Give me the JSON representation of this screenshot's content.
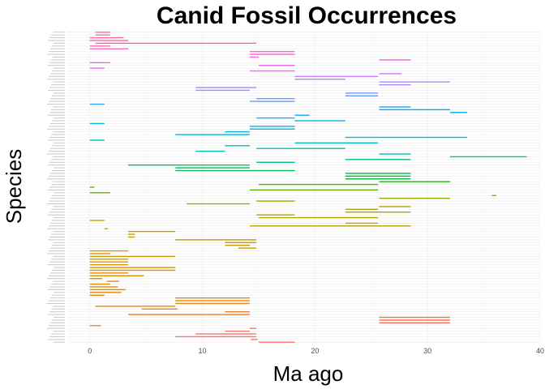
{
  "chart_data": {
    "type": "range-bar",
    "title": "Canid Fossil Occurrences",
    "xlabel": "Ma ago",
    "ylabel": "Species",
    "xlim": [
      -2,
      40
    ],
    "xticks": [
      0,
      10,
      20,
      30,
      40
    ],
    "grid": true,
    "legend": "none",
    "y_tick_labels_legible": false,
    "colors": [
      "#f8766d",
      "#e58700",
      "#c99800",
      "#a3a500",
      "#6bb100",
      "#00ba38",
      "#00bf7d",
      "#00c0af",
      "#00bcd8",
      "#00b0f6",
      "#619cff",
      "#b983ff",
      "#e76bf3",
      "#fd61d1",
      "#ff67a4"
    ],
    "species": [
      {
        "start": 15,
        "end": 18.2,
        "color": "#f8766d"
      },
      {
        "start": 14.3,
        "end": 14.9,
        "color": "#f8766d"
      },
      {
        "start": 7.6,
        "end": 14.8,
        "color": "#f8766d"
      },
      {
        "start": 9.4,
        "end": 14.8,
        "color": "#f8766d"
      },
      {
        "start": 12,
        "end": 14.2,
        "color": "#f8766d"
      },
      {
        "start": 14.2,
        "end": 14.8,
        "color": "#f8766d"
      },
      {
        "start": 0,
        "end": 1,
        "color": "#f8766d"
      },
      {
        "start": 25.7,
        "end": 32,
        "color": "#f36e5b"
      },
      {
        "start": 25.7,
        "end": 32,
        "color": "#f36e5b"
      },
      {
        "start": 25.7,
        "end": 32,
        "color": "#ee7340"
      },
      {
        "start": 3.4,
        "end": 14.2,
        "color": "#ea7e2c"
      },
      {
        "start": 12,
        "end": 14.2,
        "color": "#ea7e2c"
      },
      {
        "start": 4.6,
        "end": 7.8,
        "color": "#ea7e2c"
      },
      {
        "start": 0.5,
        "end": 7.6,
        "color": "#e58700"
      },
      {
        "start": 7.6,
        "end": 14.2,
        "color": "#e58700"
      },
      {
        "start": 7.6,
        "end": 14.2,
        "color": "#e58700"
      },
      {
        "start": 7.6,
        "end": 14.2,
        "color": "#e58700"
      },
      {
        "start": 0,
        "end": 1.3,
        "color": "#e58700"
      },
      {
        "start": 0,
        "end": 2.8,
        "color": "#e58700"
      },
      {
        "start": 0,
        "end": 3.2,
        "color": "#e58700"
      },
      {
        "start": 0,
        "end": 2.5,
        "color": "#e58700"
      },
      {
        "start": 0,
        "end": 1.8,
        "color": "#e58700"
      },
      {
        "start": 1.5,
        "end": 2.6,
        "color": "#e08e00"
      },
      {
        "start": 0,
        "end": 1.1,
        "color": "#e08e00"
      },
      {
        "start": 0,
        "end": 4.8,
        "color": "#e08e00"
      },
      {
        "start": 0,
        "end": 3.4,
        "color": "#e08e00"
      },
      {
        "start": 0,
        "end": 7.6,
        "color": "#e08e00"
      },
      {
        "start": 0,
        "end": 7.6,
        "color": "#db9300"
      },
      {
        "start": 0,
        "end": 3.4,
        "color": "#db9300"
      },
      {
        "start": 0,
        "end": 3.4,
        "color": "#db9300"
      },
      {
        "start": 0,
        "end": 3.4,
        "color": "#db9300"
      },
      {
        "start": 0,
        "end": 7.6,
        "color": "#d69600"
      },
      {
        "start": 0,
        "end": 1.8,
        "color": "#d69600"
      },
      {
        "start": 0,
        "end": 3.4,
        "color": "#d69600"
      },
      {
        "start": 13.2,
        "end": 14.8,
        "color": "#d19800"
      },
      {
        "start": 12,
        "end": 14.2,
        "color": "#d19800"
      },
      {
        "start": 12,
        "end": 14.8,
        "color": "#c99800"
      },
      {
        "start": 7.6,
        "end": 14.8,
        "color": "#c99800"
      },
      {
        "start": 3.4,
        "end": 4,
        "color": "#c99800"
      },
      {
        "start": 3.4,
        "end": 4,
        "color": "#c99800"
      },
      {
        "start": 3.4,
        "end": 7.6,
        "color": "#c49b00"
      },
      {
        "start": 1.3,
        "end": 1.6,
        "color": "#c49b00"
      },
      {
        "start": 14.2,
        "end": 28.5,
        "color": "#bf9d00"
      },
      {
        "start": 22.7,
        "end": 25.6,
        "color": "#bf9d00"
      },
      {
        "start": 0,
        "end": 1.3,
        "color": "#b99f00"
      },
      {
        "start": 15,
        "end": 25.6,
        "color": "#b3a100"
      },
      {
        "start": 14.8,
        "end": 18.2,
        "color": "#b3a100"
      },
      {
        "start": 22.7,
        "end": 28.5,
        "color": "#ada200"
      },
      {
        "start": 22.7,
        "end": 25.6,
        "color": "#ada200"
      },
      {
        "start": 25.7,
        "end": 28.5,
        "color": "#ada200"
      },
      {
        "start": 8.6,
        "end": 14.2,
        "color": "#a3a500"
      },
      {
        "start": 14.8,
        "end": 18.2,
        "color": "#a3a500"
      },
      {
        "start": 25.7,
        "end": 32,
        "color": "#93aa00"
      },
      {
        "start": 35.7,
        "end": 36.1,
        "color": "#82ad00"
      },
      {
        "start": 0,
        "end": 1.8,
        "color": "#6bb100"
      },
      {
        "start": 14.2,
        "end": 25.6,
        "color": "#5bb300"
      },
      {
        "start": 0,
        "end": 0.4,
        "color": "#4bb400"
      },
      {
        "start": 15,
        "end": 25.6,
        "color": "#4bb400"
      },
      {
        "start": 25.7,
        "end": 32,
        "color": "#22b618"
      },
      {
        "start": 22.7,
        "end": 28.5,
        "color": "#00b82c"
      },
      {
        "start": 22.7,
        "end": 28.5,
        "color": "#00ba38"
      },
      {
        "start": 22.7,
        "end": 28.5,
        "color": "#00bb44"
      },
      {
        "start": 7.6,
        "end": 18.2,
        "color": "#00bc52"
      },
      {
        "start": 7.6,
        "end": 14.2,
        "color": "#00bd5f"
      },
      {
        "start": 3.4,
        "end": 14.2,
        "color": "#00be67"
      },
      {
        "start": 14.8,
        "end": 18.2,
        "color": "#00bf73"
      },
      {
        "start": 22.7,
        "end": 28.5,
        "color": "#00c08b"
      },
      {
        "start": 32,
        "end": 38.8,
        "color": "#00c097"
      },
      {
        "start": 25.7,
        "end": 28.5,
        "color": "#00c0a3"
      },
      {
        "start": 9.4,
        "end": 12,
        "color": "#00c0af"
      },
      {
        "start": 14.8,
        "end": 22.7,
        "color": "#00c0b8"
      },
      {
        "start": 12,
        "end": 14.2,
        "color": "#00c0bf"
      },
      {
        "start": 18.2,
        "end": 25.6,
        "color": "#00bfc4"
      },
      {
        "start": 0,
        "end": 1.3,
        "color": "#00bfc4"
      },
      {
        "start": 22.7,
        "end": 33.5,
        "color": "#00bdd0"
      },
      {
        "start": 7.6,
        "end": 14.2,
        "color": "#00bcd8"
      },
      {
        "start": 12,
        "end": 14.2,
        "color": "#00bcd8"
      },
      {
        "start": 14.2,
        "end": 18.2,
        "color": "#00b9e0"
      },
      {
        "start": 14.2,
        "end": 18.2,
        "color": "#00b9e0"
      },
      {
        "start": 0,
        "end": 1.3,
        "color": "#00b6e8"
      },
      {
        "start": 18.2,
        "end": 22.7,
        "color": "#00b6e8"
      },
      {
        "start": 14.8,
        "end": 18.2,
        "color": "#00b2f0"
      },
      {
        "start": 18.2,
        "end": 19.5,
        "color": "#00b0f6"
      },
      {
        "start": 32,
        "end": 33.5,
        "color": "#00acfc"
      },
      {
        "start": 25.7,
        "end": 32,
        "color": "#00a8ff"
      },
      {
        "start": 25.7,
        "end": 28.5,
        "color": "#00a8ff"
      },
      {
        "start": 0,
        "end": 1.3,
        "color": "#33a0ff"
      },
      {
        "start": 14.2,
        "end": 18.2,
        "color": "#619cff"
      },
      {
        "start": 14.8,
        "end": 18.2,
        "color": "#619cff"
      },
      {
        "start": 22.7,
        "end": 25.6,
        "color": "#619cff"
      },
      {
        "start": 22.7,
        "end": 25.6,
        "color": "#7f96ff"
      },
      {
        "start": 9.4,
        "end": 14.2,
        "color": "#8f91ff"
      },
      {
        "start": 9.4,
        "end": 14.8,
        "color": "#8f91ff"
      },
      {
        "start": 25.7,
        "end": 28.5,
        "color": "#a58aff"
      },
      {
        "start": 25.7,
        "end": 32,
        "color": "#b983ff"
      },
      {
        "start": 18.2,
        "end": 22.7,
        "color": "#b983ff"
      },
      {
        "start": 18.2,
        "end": 25.6,
        "color": "#c77cff"
      },
      {
        "start": 25.7,
        "end": 27.7,
        "color": "#d179ff"
      },
      {
        "start": 14.2,
        "end": 18.2,
        "color": "#e76bf3"
      },
      {
        "start": 0,
        "end": 1.3,
        "color": "#e76bf3"
      },
      {
        "start": 15,
        "end": 18.2,
        "color": "#ec69ec"
      },
      {
        "start": 0,
        "end": 1.8,
        "color": "#ec69ec"
      },
      {
        "start": 25.7,
        "end": 28.5,
        "color": "#f564e3"
      },
      {
        "start": 14.2,
        "end": 15,
        "color": "#f862dc"
      },
      {
        "start": 14.2,
        "end": 18.2,
        "color": "#fd61d1"
      },
      {
        "start": 14.2,
        "end": 18.2,
        "color": "#fd61d1"
      },
      {
        "start": 0,
        "end": 3.4,
        "color": "#ff63c5"
      },
      {
        "start": 0,
        "end": 1.8,
        "color": "#ff66b8"
      },
      {
        "start": 0.5,
        "end": 14.8,
        "color": "#ff67a4"
      },
      {
        "start": 0,
        "end": 3.4,
        "color": "#ff6b94"
      },
      {
        "start": 0,
        "end": 3,
        "color": "#ff6c91"
      },
      {
        "start": 0.5,
        "end": 1.8,
        "color": "#ff6c91"
      },
      {
        "start": 0.5,
        "end": 1.8,
        "color": "#ff6c91"
      }
    ]
  }
}
